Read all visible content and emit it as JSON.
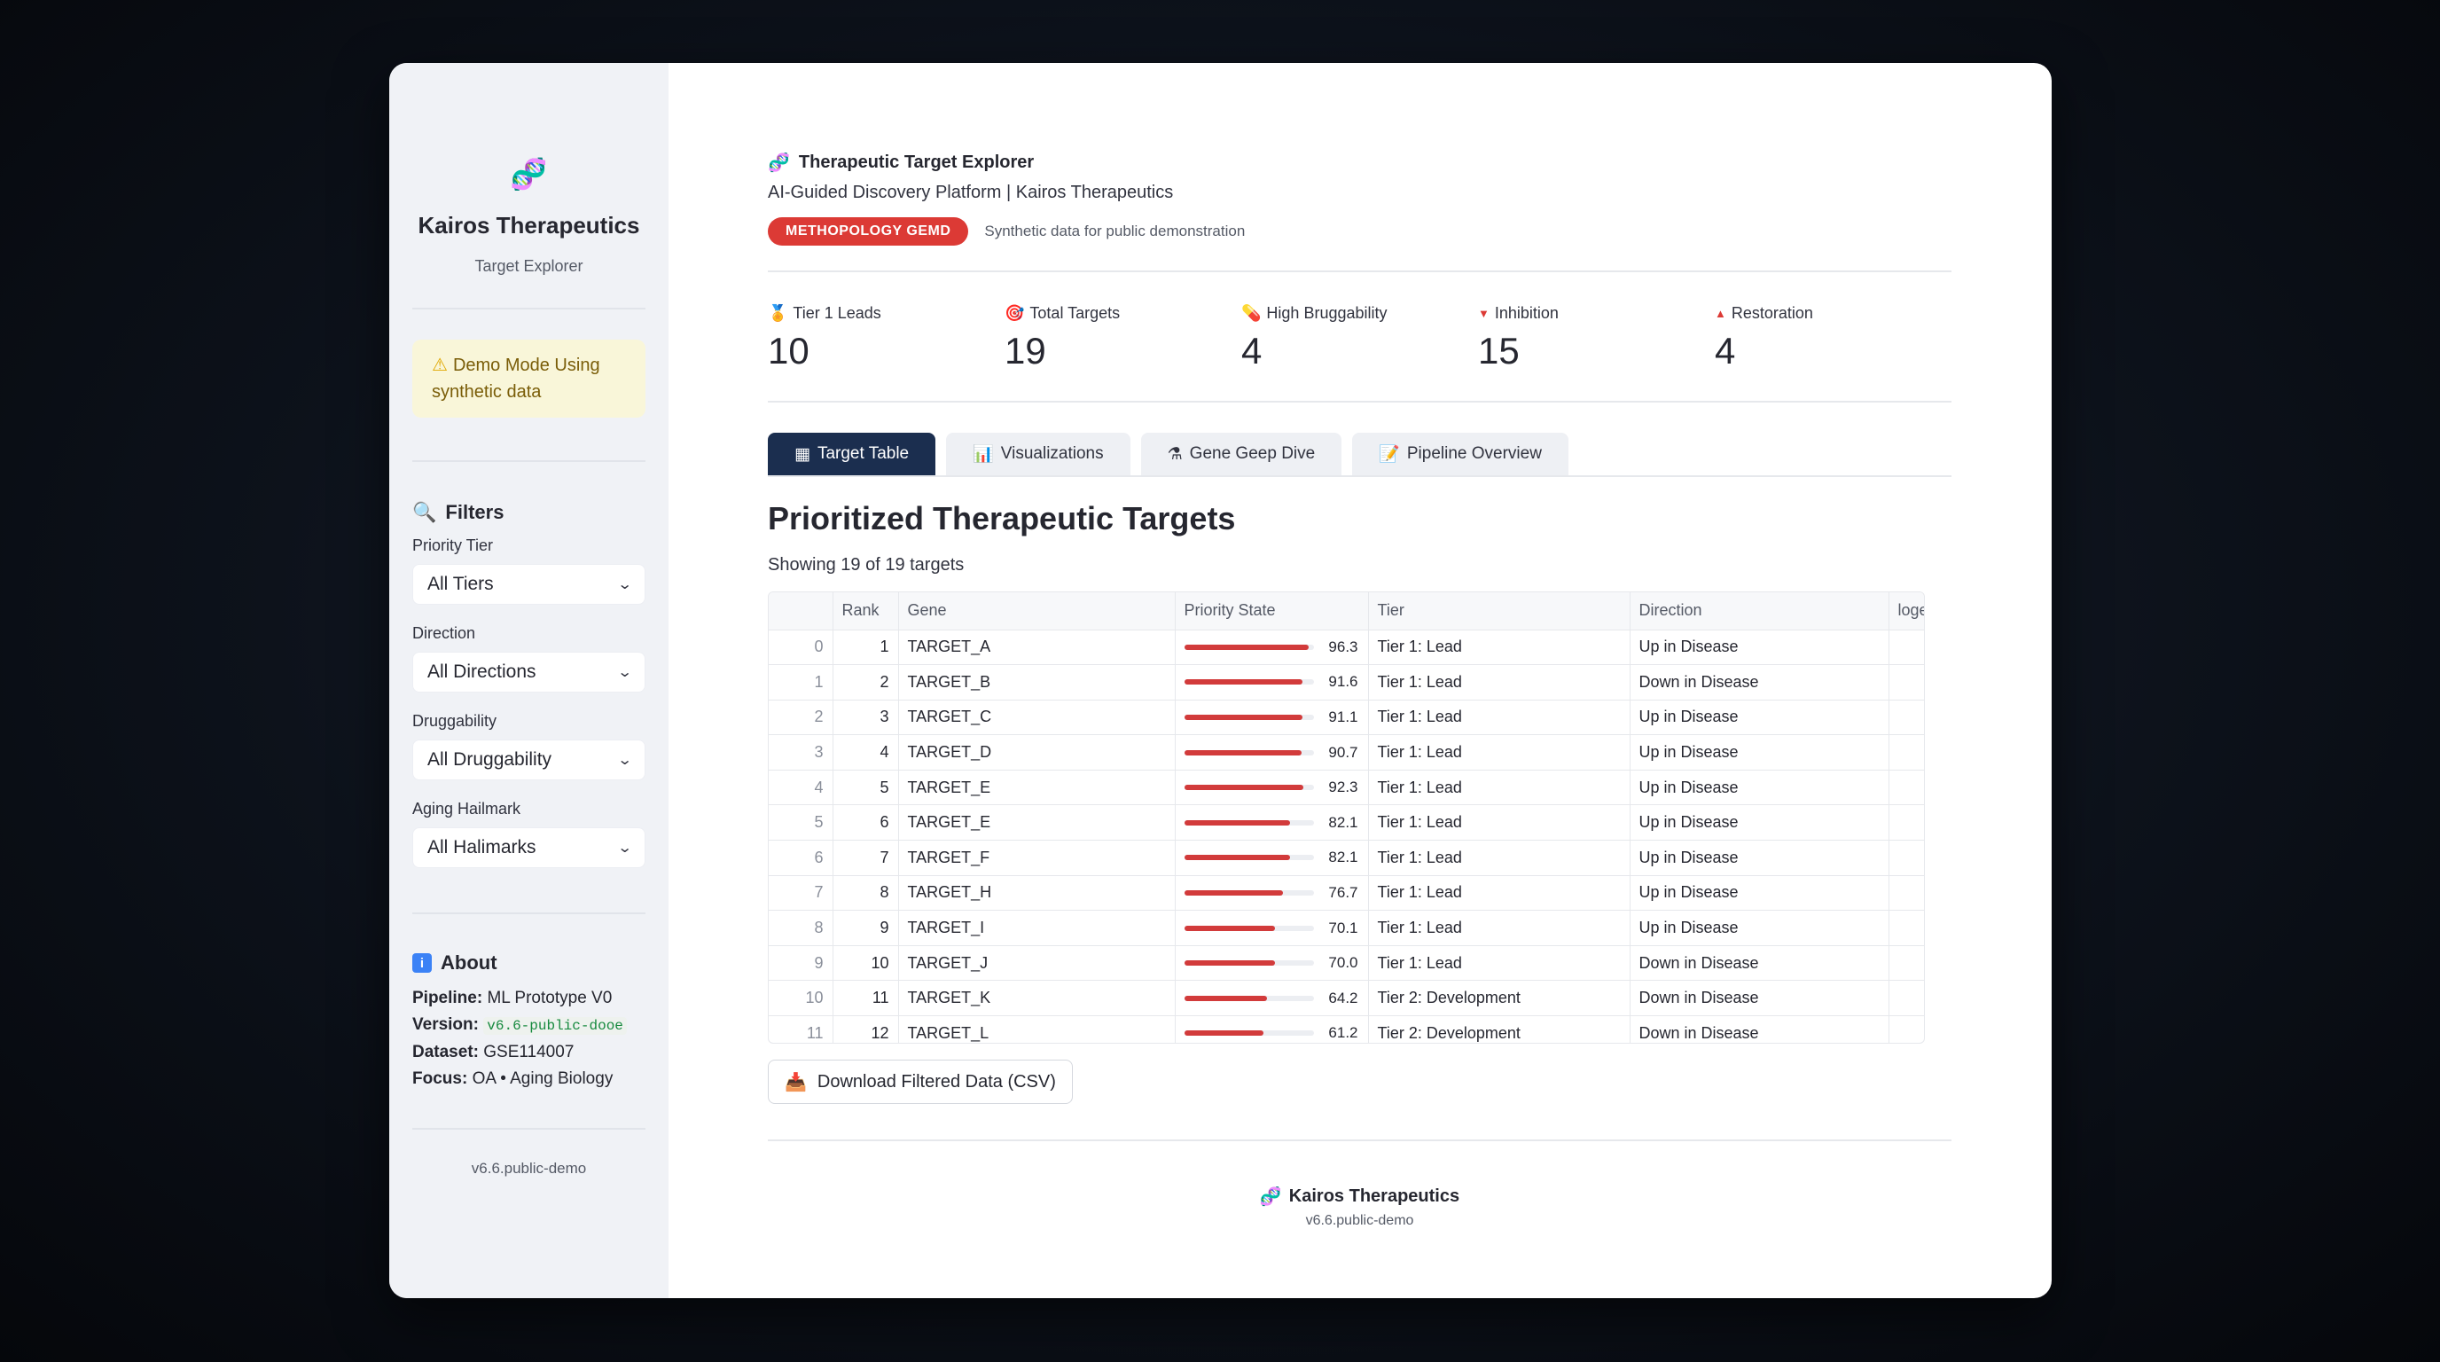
{
  "sidebar": {
    "brand": "Kairos Therapeutics",
    "subtitle": "Target Explorer",
    "warning": "Demo Mode Using synthetic data",
    "filters_title": "Filters",
    "filters": [
      {
        "label": "Priority Tier",
        "value": "All Tiers"
      },
      {
        "label": "Direction",
        "value": "All Directions"
      },
      {
        "label": "Druggability",
        "value": "All Druggability"
      },
      {
        "label": "Aging Hailmark",
        "value": "All Halimarks"
      }
    ],
    "about_title": "About",
    "about": {
      "pipeline_label": "Pipeline:",
      "pipeline": "ML Prototype V0",
      "version_label": "Version:",
      "version": "v6.6-public-dooe",
      "dataset_label": "Dataset:",
      "dataset": "GSE114007",
      "focus_label": "Focus:",
      "focus": "OA • Aging Biology"
    },
    "footer_version": "v6.6.public-demo"
  },
  "header": {
    "title": "Therapeutic Target Explorer",
    "subtitle": "AI-Guided Discovery Platform | Kairos Therapeutics",
    "badge": "METHOPOLOGY GEMD",
    "badge_note": "Synthetic data for public demonstration"
  },
  "metrics": [
    {
      "icon": "medal",
      "label": "Tier 1 Leads",
      "value": "10"
    },
    {
      "icon": "target",
      "label": "Total Targets",
      "value": "19"
    },
    {
      "icon": "pill",
      "label": "High Bruggability",
      "value": "4"
    },
    {
      "icon": "down-triangle",
      "label": "Inhibition",
      "value": "15"
    },
    {
      "icon": "up-triangle",
      "label": "Restoration",
      "value": "4"
    }
  ],
  "tabs": [
    "Target Table",
    "Visualizations",
    "Gene Geep Dive",
    "Pipeline Overview"
  ],
  "section_title": "Prioritized Therapeutic Targets",
  "showing": "Showing 19 of 19 targets",
  "table": {
    "columns": [
      "",
      "Rank",
      "Gene",
      "Priority State",
      "Tier",
      "Direction",
      "loge"
    ],
    "rows": [
      {
        "idx": "0",
        "rank": "1",
        "gene": "TARGET_A",
        "score": 96.3,
        "score_text": "96.3",
        "tier": "Tier 1: Lead",
        "direction": "Up in Disease",
        "extra": ""
      },
      {
        "idx": "1",
        "rank": "2",
        "gene": "TARGET_B",
        "score": 91.6,
        "score_text": "91.6",
        "tier": "Tier 1: Lead",
        "direction": "Down in Disease",
        "extra": "-"
      },
      {
        "idx": "2",
        "rank": "3",
        "gene": "TARGET_C",
        "score": 91.1,
        "score_text": "91.1",
        "tier": "Tier 1: Lead",
        "direction": "Up in Disease",
        "extra": ""
      },
      {
        "idx": "3",
        "rank": "4",
        "gene": "TARGET_D",
        "score": 90.7,
        "score_text": "90.7",
        "tier": "Tier 1: Lead",
        "direction": "Up in Disease",
        "extra": ""
      },
      {
        "idx": "4",
        "rank": "5",
        "gene": "TARGET_E",
        "score": 92.3,
        "score_text": "92.3",
        "tier": "Tier 1: Lead",
        "direction": "Up in Disease",
        "extra": ""
      },
      {
        "idx": "5",
        "rank": "6",
        "gene": "TARGET_E",
        "score": 82.1,
        "score_text": "82.1",
        "tier": "Tier 1: Lead",
        "direction": "Up in Disease",
        "extra": ""
      },
      {
        "idx": "6",
        "rank": "7",
        "gene": "TARGET_F",
        "score": 82.1,
        "score_text": "82.1",
        "tier": "Tier 1: Lead",
        "direction": "Up in Disease",
        "extra": ""
      },
      {
        "idx": "7",
        "rank": "8",
        "gene": "TARGET_H",
        "score": 76.7,
        "score_text": "76.7",
        "tier": "Tier 1: Lead",
        "direction": "Up in Disease",
        "extra": ""
      },
      {
        "idx": "8",
        "rank": "9",
        "gene": "TARGET_I",
        "score": 70.1,
        "score_text": "70.1",
        "tier": "Tier 1: Lead",
        "direction": "Up in Disease",
        "extra": ""
      },
      {
        "idx": "9",
        "rank": "10",
        "gene": "TARGET_J",
        "score": 70.0,
        "score_text": "70.0",
        "tier": "Tier 1: Lead",
        "direction": "Down in Disease",
        "extra": "-"
      },
      {
        "idx": "10",
        "rank": "11",
        "gene": "TARGET_K",
        "score": 64.2,
        "score_text": "64.2",
        "tier": "Tier 2: Development",
        "direction": "Down in Disease",
        "extra": "-"
      },
      {
        "idx": "11",
        "rank": "12",
        "gene": "TARGET_L",
        "score": 61.2,
        "score_text": "61.2",
        "tier": "Tier 2: Development",
        "direction": "Down in Disease",
        "extra": "-"
      }
    ]
  },
  "download_label": "Download Filtered Data (CSV)",
  "footer": {
    "brand": "Kairos Therapeutics",
    "version": "v6.6.public-demo"
  },
  "colors": {
    "accent_navy": "#1b2e4f",
    "badge_red": "#dc3a35",
    "bar_red": "#d23b3b",
    "sidebar_bg": "#f0f2f6"
  }
}
